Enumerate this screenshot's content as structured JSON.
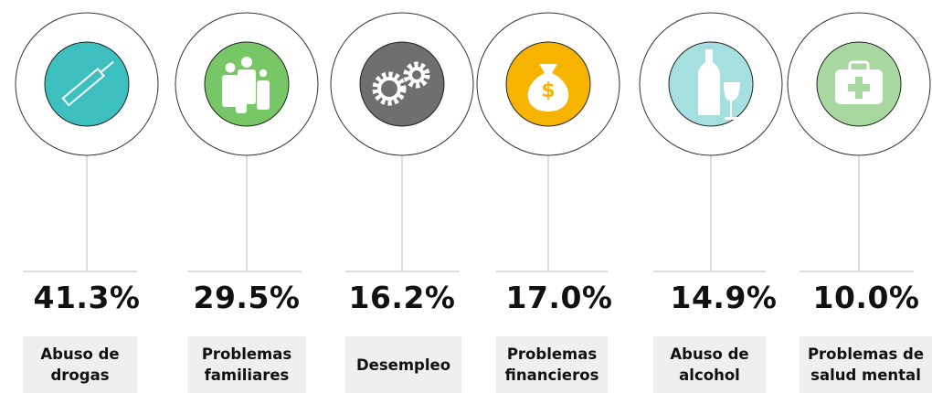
{
  "items": [
    {
      "value": "41.3%",
      "label": "Abuso de drogas"
    },
    {
      "value": "29.5%",
      "label": "Problemas familiares"
    },
    {
      "value": "16.2%",
      "label": "Desempleo"
    },
    {
      "value": "17.0%",
      "label": "Problemas financieros"
    },
    {
      "value": "14.9%",
      "label": "Abuso de alcohol"
    },
    {
      "value": "10.0%",
      "label": "Problemas de salud mental"
    }
  ]
}
